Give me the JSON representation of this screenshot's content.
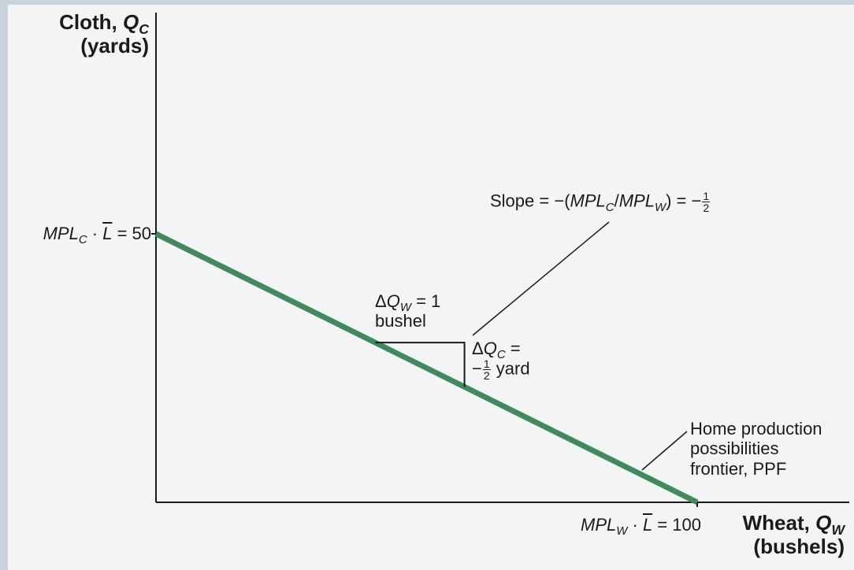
{
  "chart_data": {
    "type": "line",
    "title": "",
    "xlabel": "Wheat, Q_W (bushels)",
    "ylabel": "Cloth, Q_C (yards)",
    "xlim": [
      0,
      100
    ],
    "ylim": [
      0,
      50
    ],
    "series": [
      {
        "name": "Home production possibilities frontier, PPF",
        "x": [
          0,
          100
        ],
        "y": [
          50,
          0
        ],
        "color": "#3f8a5e"
      }
    ],
    "y_intercept_label": "MPL_C · L̄ = 50",
    "x_intercept_label": "MPL_W · L̄ = 100",
    "slope_value": -0.5,
    "annotations": {
      "slope": "Slope = −(MPL_C/MPL_W) = −1/2",
      "delta_w": "ΔQ_W = 1 bushel",
      "delta_c": "ΔQ_C = −1/2 yard",
      "ppf_label": "Home production possibilities frontier, PPF"
    }
  },
  "text": {
    "y_title_line1": "Cloth, ",
    "y_title_var": "Q",
    "y_title_sub": "C",
    "y_title_line2": "(yards)",
    "x_title_line1": "Wheat, ",
    "x_title_var": "Q",
    "x_title_sub": "W",
    "x_title_line2": "(bushels)",
    "y_int_mpl": "MPL",
    "y_int_sub": "C",
    "y_int_dot": " · ",
    "y_int_l": "L",
    "y_int_eq": " = 50",
    "x_int_mpl": "MPL",
    "x_int_sub": "W",
    "x_int_dot": " · ",
    "x_int_l": "L",
    "x_int_eq": " = 100",
    "slope_prefix": "Slope = −(",
    "slope_mplc": "MPL",
    "slope_subc": "C",
    "slope_div": "/",
    "slope_mplw": "MPL",
    "slope_subw": "W",
    "slope_suffix": ") = −",
    "half_num": "1",
    "half_den": "2",
    "dw_delta": "Δ",
    "dw_q": "Q",
    "dw_sub": "W",
    "dw_eq": " = 1",
    "dw_unit": "bushel",
    "dc_delta": "Δ",
    "dc_q": "Q",
    "dc_sub": "C",
    "dc_eq": " =",
    "dc_minus": "−",
    "dc_unit": " yard",
    "ppf_line1": "Home production",
    "ppf_line2": "possibilities",
    "ppf_line3": "frontier, PPF"
  }
}
